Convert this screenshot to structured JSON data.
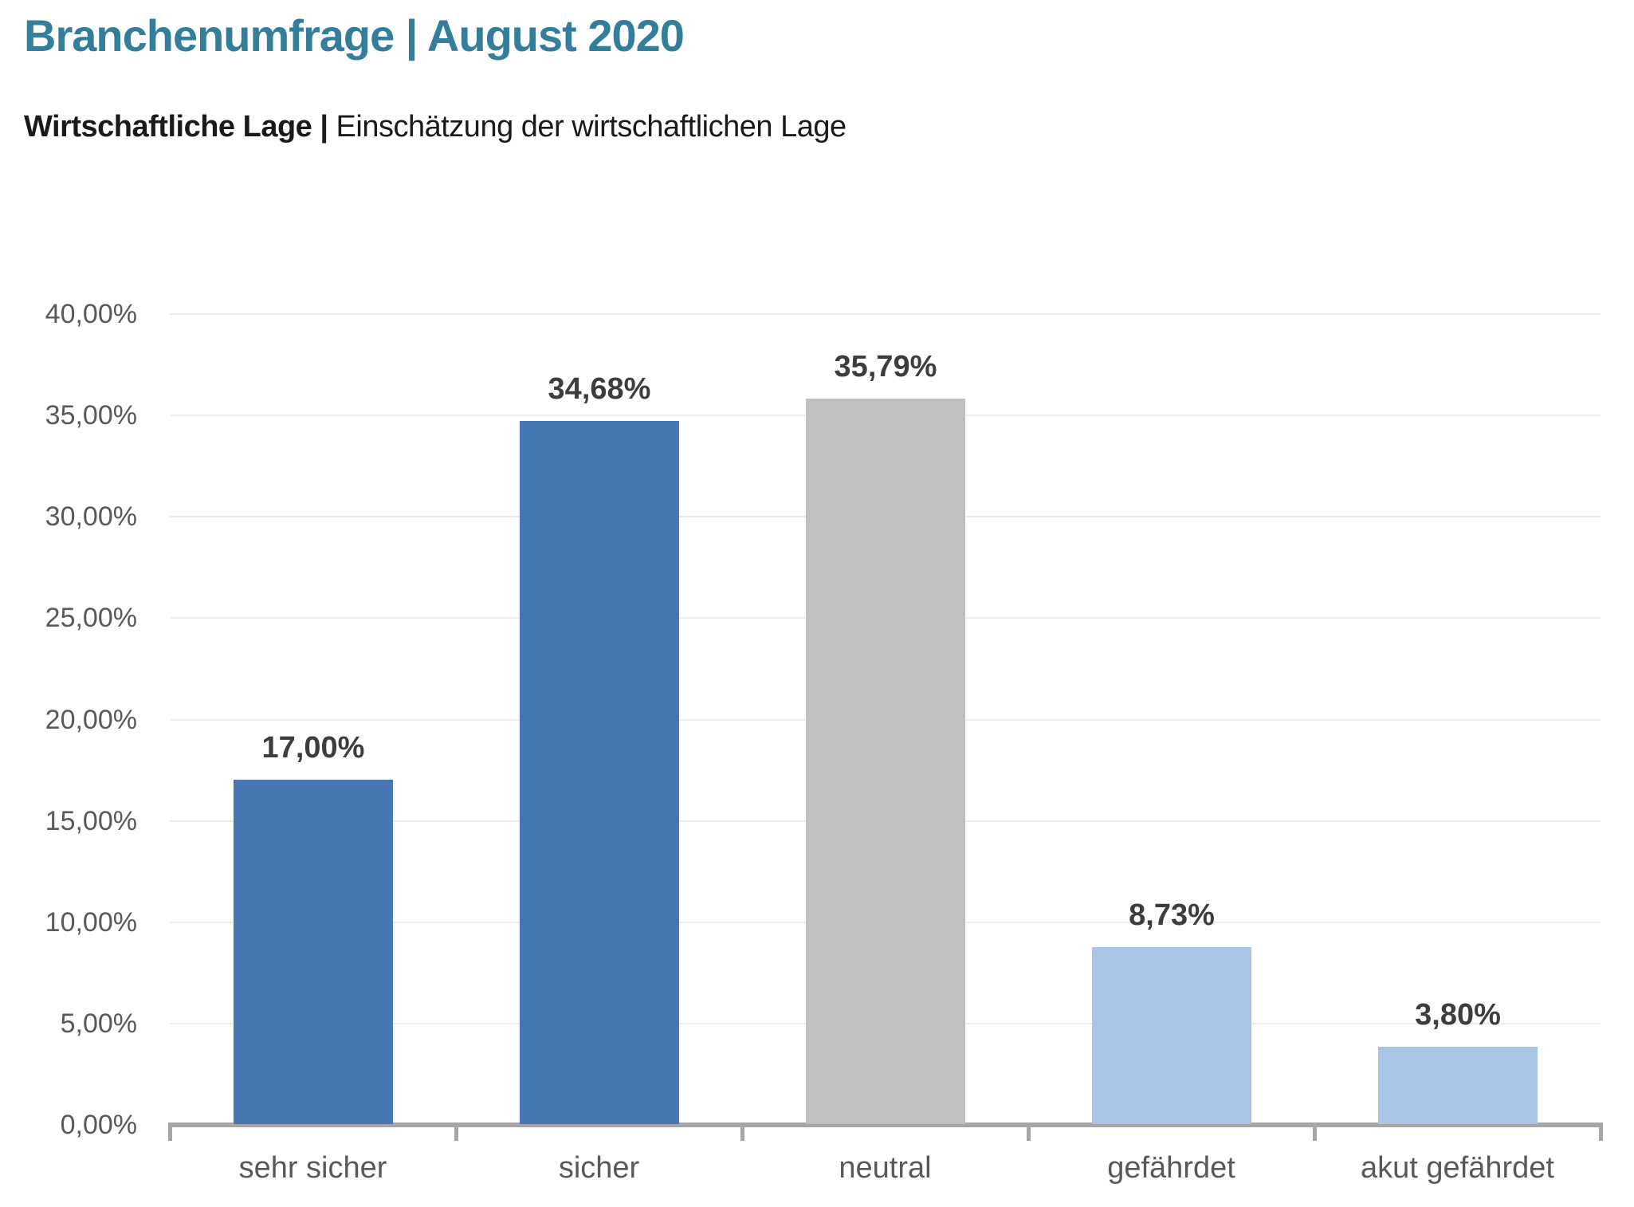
{
  "page": {
    "title": "Branchenumfrage | August 2020"
  },
  "subtitle": {
    "bold": "Wirtschaftliche Lage |",
    "regular": " Einschätzung der wirtschaftlichen Lage"
  },
  "colors": {
    "title": "#337e9b",
    "bar_positive": "#4677b4",
    "bar_neutral": "#bfbfbf",
    "bar_negative": "#a7c4e4",
    "axis": "#a6a6a6",
    "gridline": "#ededed",
    "tick_text": "#595959",
    "value_text": "#3d3d3d"
  },
  "chart_data": {
    "type": "bar",
    "title": "Wirtschaftliche Lage | Einschätzung der wirtschaftlichen Lage",
    "categories": [
      "sehr sicher",
      "sicher",
      "neutral",
      "gefährdet",
      "akut gefährdet"
    ],
    "values": [
      17.0,
      34.68,
      35.79,
      8.73,
      3.8
    ],
    "value_labels": [
      "17,00%",
      "34,68%",
      "35,79%",
      "8,73%",
      "3,80%"
    ],
    "bar_colors": [
      "#4677b4",
      "#4677b4",
      "#bfbfbf",
      "#a7c4e4",
      "#a7c4e4"
    ],
    "xlabel": "",
    "ylabel": "",
    "ylim": [
      0,
      40
    ],
    "y_ticks": [
      {
        "value": 40,
        "label": "40,00%"
      },
      {
        "value": 35,
        "label": "35,00%"
      },
      {
        "value": 30,
        "label": "30,00%"
      },
      {
        "value": 25,
        "label": "25,00%"
      },
      {
        "value": 20,
        "label": "20,00%"
      },
      {
        "value": 15,
        "label": "15,00%"
      },
      {
        "value": 10,
        "label": "10,00%"
      },
      {
        "value": 5,
        "label": "5,00%"
      },
      {
        "value": 0,
        "label": "0,00%"
      }
    ],
    "grid": true,
    "legend_position": "none"
  }
}
